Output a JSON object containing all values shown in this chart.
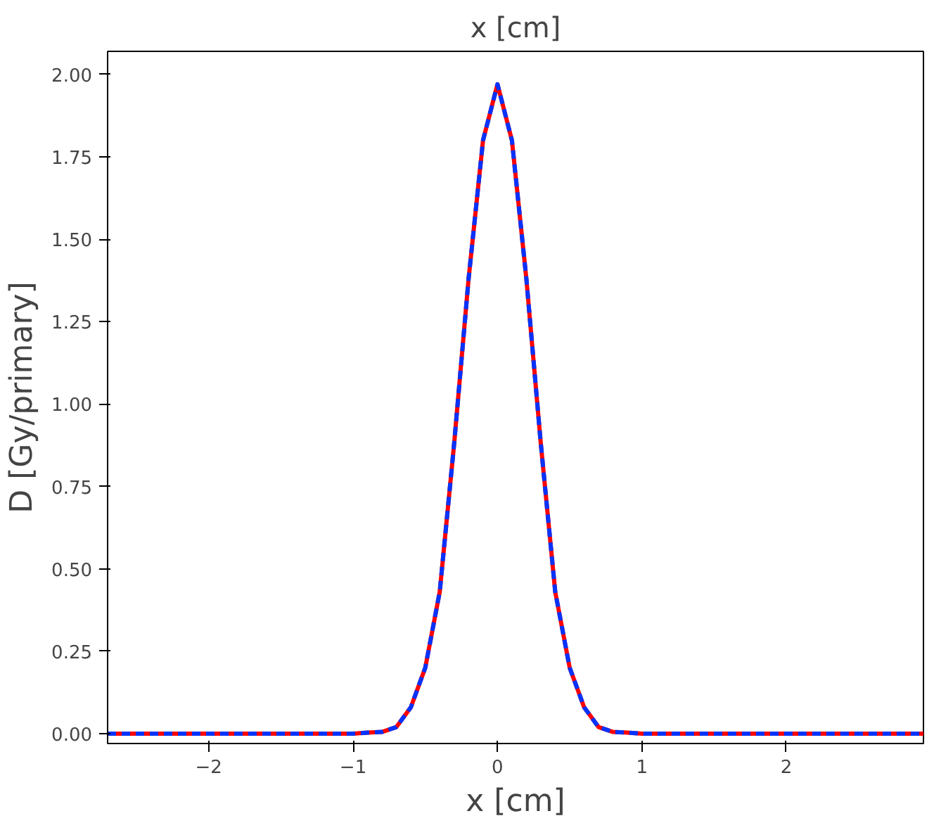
{
  "chart_data": {
    "type": "line",
    "title": "x [cm]",
    "xlabel": "x [cm]",
    "ylabel": "D [Gy/primary]",
    "x": [
      -2.7,
      -1.0,
      -0.9,
      -0.8,
      -0.7,
      -0.6,
      -0.5,
      -0.4,
      -0.3,
      -0.2,
      -0.1,
      0.0,
      0.1,
      0.2,
      0.3,
      0.4,
      0.5,
      0.6,
      0.7,
      0.8,
      0.9,
      1.0,
      2.95
    ],
    "series": [
      {
        "color": "#ff0000",
        "line_style": "solid",
        "values": [
          0,
          0,
          0.003,
          0.005,
          0.02,
          0.08,
          0.2,
          0.43,
          0.88,
          1.38,
          1.8,
          1.97,
          1.8,
          1.38,
          0.88,
          0.43,
          0.2,
          0.08,
          0.02,
          0.005,
          0.003,
          0,
          0
        ]
      },
      {
        "color": "#0033ff",
        "line_style": "dashed",
        "values": [
          0,
          0,
          0.003,
          0.005,
          0.02,
          0.08,
          0.2,
          0.43,
          0.88,
          1.38,
          1.8,
          1.97,
          1.8,
          1.38,
          0.88,
          0.43,
          0.2,
          0.08,
          0.02,
          0.005,
          0.003,
          0,
          0
        ]
      }
    ],
    "xlim": [
      -2.7,
      2.95
    ],
    "ylim": [
      -0.03,
      2.07
    ],
    "xticks": [
      {
        "value": -2,
        "label": "−2"
      },
      {
        "value": -1,
        "label": "−1"
      },
      0,
      1,
      2
    ],
    "yticks": [
      {
        "value": 0,
        "label": "0.00"
      },
      {
        "value": 0.25,
        "label": "0.25"
      },
      {
        "value": 0.5,
        "label": "0.50"
      },
      {
        "value": 0.75,
        "label": "0.75"
      },
      {
        "value": 1,
        "label": "1.00"
      },
      {
        "value": 1.25,
        "label": "1.25"
      },
      {
        "value": 1.5,
        "label": "1.50"
      },
      {
        "value": 1.75,
        "label": "1.75"
      },
      {
        "value": 2,
        "label": "2.00"
      }
    ],
    "grid": false
  }
}
